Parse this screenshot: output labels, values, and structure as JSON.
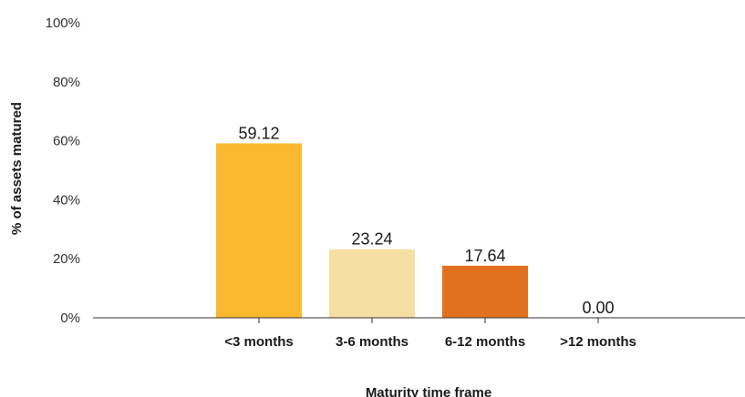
{
  "chart_data": {
    "type": "bar",
    "categories": [
      "<3 months",
      "3-6 months",
      "6-12 months",
      ">12 months"
    ],
    "values": [
      59.12,
      23.24,
      17.64,
      0.0
    ],
    "data_labels": [
      "59.12",
      "23.24",
      "17.64",
      "0.00"
    ],
    "colors": [
      "#FBB92F",
      "#F5DFA2",
      "#E2711F",
      "#E2711F"
    ],
    "title": "",
    "xlabel": "Maturity time frame",
    "ylabel": "% of assets matured",
    "ylim": [
      0,
      100
    ],
    "yticks": [
      "0%",
      "20%",
      "40%",
      "60%",
      "80%",
      "100%"
    ],
    "grid": false,
    "legend": "none"
  }
}
